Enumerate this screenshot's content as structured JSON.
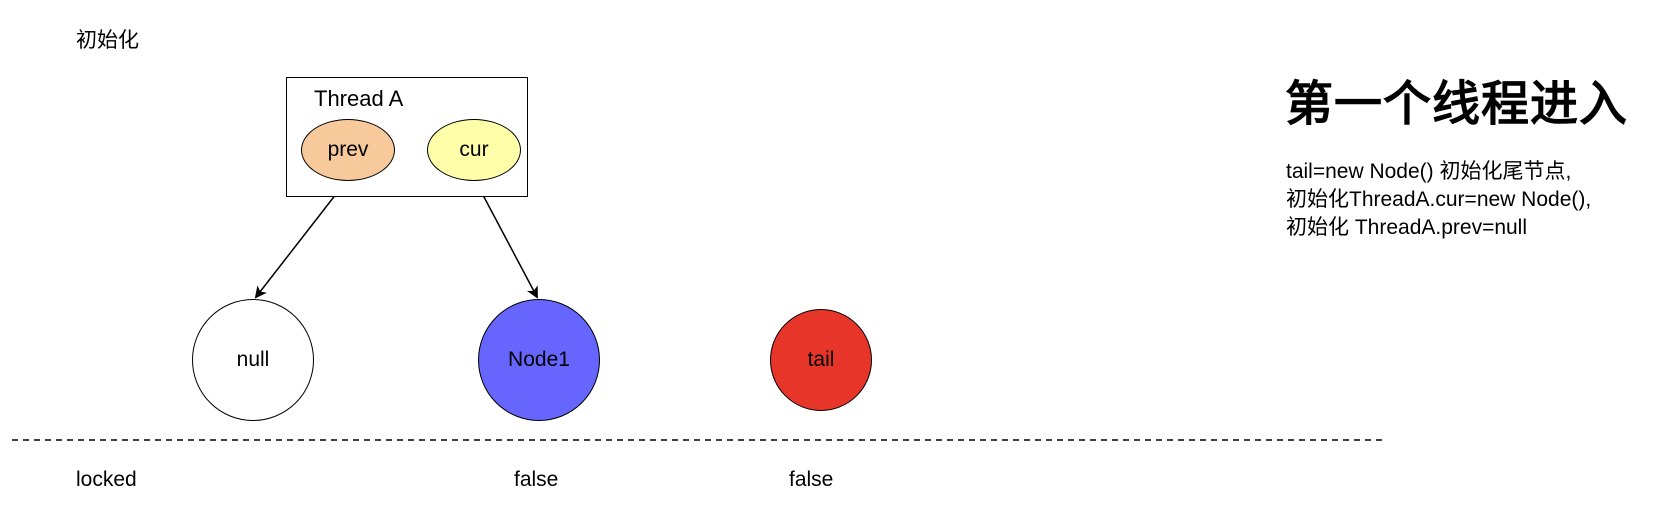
{
  "title": "第一个线程进入",
  "init_label": "初始化",
  "description": [
    "tail=new Node() 初始化尾节点,",
    "初始化ThreadA.cur=new Node(),",
    "初始化 ThreadA.prev=null"
  ],
  "thread": {
    "name": "Thread A",
    "prev_label": "prev",
    "cur_label": "cur"
  },
  "nodes": {
    "null_label": "null",
    "node1_label": "Node1",
    "tail_label": "tail"
  },
  "states": {
    "null_state": "locked",
    "node1_state": "false",
    "tail_state": "false"
  },
  "colors": {
    "prev_fill": "#F7C99B",
    "cur_fill": "#FFFFAA",
    "null_fill": "#FFFFFF",
    "node1_fill": "#6666FF",
    "tail_fill": "#E8352A",
    "line": "#000000"
  }
}
